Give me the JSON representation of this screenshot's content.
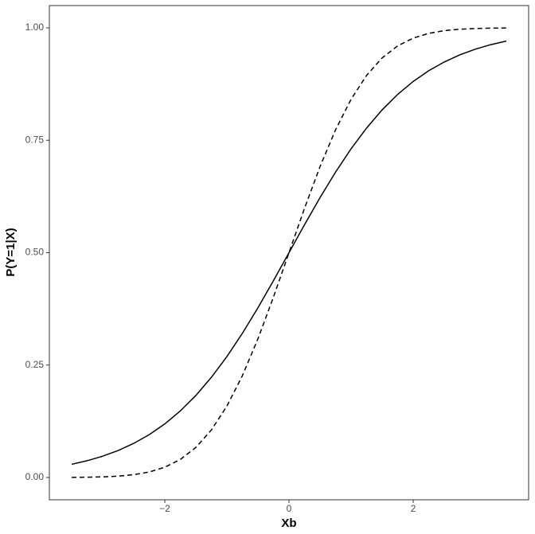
{
  "chart_data": {
    "type": "line",
    "x_label": "Xb",
    "y_label": "P(Y=1|X)",
    "x": [
      -3.5,
      -3.25,
      -3.0,
      -2.75,
      -2.5,
      -2.25,
      -2.0,
      -1.75,
      -1.5,
      -1.25,
      -1.0,
      -0.75,
      -0.5,
      -0.25,
      0,
      0.25,
      0.5,
      0.75,
      1.0,
      1.25,
      1.5,
      1.75,
      2.0,
      2.25,
      2.5,
      2.75,
      3.0,
      3.25,
      3.5
    ],
    "series": [
      {
        "color": "#000000",
        "dashed": false,
        "values": [
          0.0293,
          0.0373,
          0.0474,
          0.0601,
          0.0759,
          0.0953,
          0.1192,
          0.148,
          0.1824,
          0.2227,
          0.2689,
          0.3208,
          0.3775,
          0.4378,
          0.5,
          0.5622,
          0.6225,
          0.6792,
          0.7311,
          0.7773,
          0.8176,
          0.852,
          0.8808,
          0.9047,
          0.9241,
          0.9399,
          0.9526,
          0.9627,
          0.9707
        ]
      },
      {
        "color": "#000000",
        "dashed": true,
        "values": [
          0.0002,
          0.0006,
          0.0013,
          0.003,
          0.0062,
          0.0122,
          0.0228,
          0.0401,
          0.0668,
          0.1056,
          0.1587,
          0.2266,
          0.3085,
          0.4013,
          0.5,
          0.5987,
          0.6915,
          0.7734,
          0.8413,
          0.8944,
          0.9332,
          0.9599,
          0.9772,
          0.9878,
          0.9938,
          0.997,
          0.9987,
          0.9994,
          0.9998
        ]
      }
    ],
    "xlim": [
      -3.859,
      3.859
    ],
    "xticks": [
      {
        "value": -2,
        "label": "−2"
      },
      0,
      2
    ],
    "ylim": [
      -0.0496,
      1.0496
    ],
    "yticks": [
      {
        "value": 0,
        "label": "0.00"
      },
      {
        "value": 0.25,
        "label": "0.25"
      },
      {
        "value": 0.5,
        "label": "0.50"
      },
      {
        "value": 0.75,
        "label": "0.75"
      },
      {
        "value": 1,
        "label": "1.00"
      }
    ],
    "grid": false
  }
}
